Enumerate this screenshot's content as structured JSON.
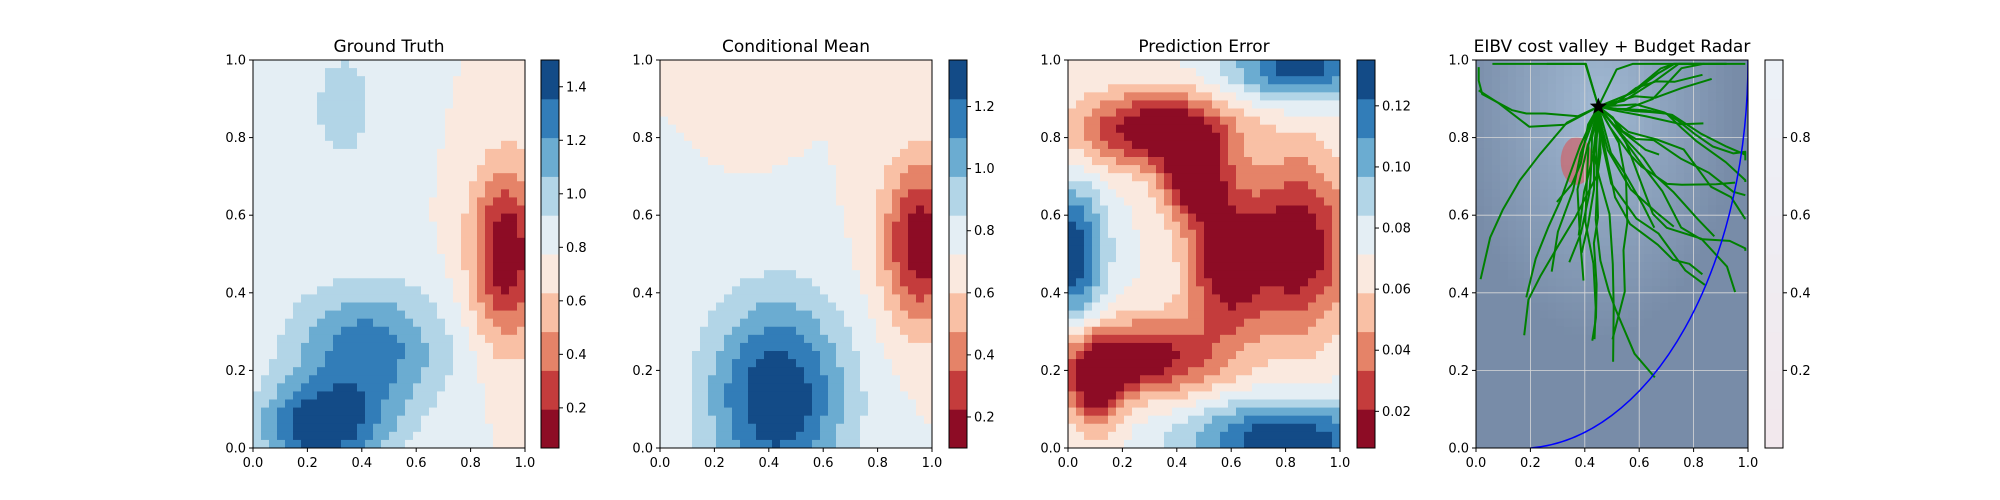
{
  "chart_data": [
    {
      "type": "heatmap",
      "title": "Ground Truth",
      "xlabel": "",
      "ylabel": "",
      "xlim": [
        0,
        1
      ],
      "ylim": [
        0,
        1
      ],
      "x_ticks": [
        "0.0",
        "0.2",
        "0.4",
        "0.6",
        "0.8",
        "1.0"
      ],
      "y_ticks": [
        "0.0",
        "0.2",
        "0.4",
        "0.6",
        "0.8",
        "1.0"
      ],
      "colormap": "RdBu",
      "colorbar": {
        "range": [
          0.05,
          1.5
        ],
        "ticks": [
          0.2,
          0.4,
          0.6,
          0.8,
          1.0,
          1.2,
          1.4
        ],
        "tick_labels": [
          "0.2",
          "0.4",
          "0.6",
          "0.8",
          "1.0",
          "1.2",
          "1.4"
        ]
      },
      "features": [
        {
          "value": 0.05,
          "x": 0.93,
          "y": 0.5,
          "sx": 0.09,
          "sy": 0.16
        },
        {
          "value": 0.95,
          "x": 0.33,
          "y": 0.88,
          "sx": 0.14,
          "sy": 0.18
        },
        {
          "value": 1.45,
          "x": 0.25,
          "y": 0.05,
          "sx": 0.16,
          "sy": 0.08
        },
        {
          "value": 1.3,
          "x": 0.42,
          "y": 0.25,
          "sx": 0.2,
          "sy": 0.12
        }
      ]
    },
    {
      "type": "heatmap",
      "title": "Conditional Mean",
      "xlabel": "",
      "ylabel": "",
      "xlim": [
        0,
        1
      ],
      "ylim": [
        0,
        1
      ],
      "x_ticks": [
        "0.0",
        "0.2",
        "0.4",
        "0.6",
        "0.8",
        "1.0"
      ],
      "y_ticks": [
        "0.0",
        "0.2",
        "0.4",
        "0.6",
        "0.8",
        "1.0"
      ],
      "colormap": "RdBu",
      "colorbar": {
        "range": [
          0.1,
          1.35
        ],
        "ticks": [
          0.2,
          0.4,
          0.6,
          0.8,
          1.0,
          1.2
        ],
        "tick_labels": [
          "0.2",
          "0.4",
          "0.6",
          "0.8",
          "1.0",
          "1.2"
        ]
      },
      "features": [
        {
          "value": 0.12,
          "x": 0.96,
          "y": 0.53,
          "sx": 0.1,
          "sy": 0.15
        },
        {
          "value": 0.72,
          "x": 0.36,
          "y": 0.84,
          "sx": 0.1,
          "sy": 0.14
        },
        {
          "value": 1.35,
          "x": 0.43,
          "y": 0.13,
          "sx": 0.18,
          "sy": 0.18
        }
      ]
    },
    {
      "type": "heatmap",
      "title": "Prediction Error",
      "xlabel": "",
      "ylabel": "",
      "xlim": [
        0,
        1
      ],
      "ylim": [
        0,
        1
      ],
      "x_ticks": [
        "0.0",
        "0.2",
        "0.4",
        "0.6",
        "0.8",
        "1.0"
      ],
      "y_ticks": [
        "0.0",
        "0.2",
        "0.4",
        "0.6",
        "0.8",
        "1.0"
      ],
      "colormap": "RdBu",
      "colorbar": {
        "range": [
          0.008,
          0.135
        ],
        "ticks": [
          0.02,
          0.04,
          0.06,
          0.08,
          0.1,
          0.12
        ],
        "tick_labels": [
          "0.02",
          "0.04",
          "0.06",
          "0.08",
          "0.10",
          "0.12"
        ]
      },
      "features": [
        {
          "value": 0.008,
          "x": 0.85,
          "y": 0.52,
          "sx": 0.13,
          "sy": 0.16
        },
        {
          "value": 0.008,
          "x": 0.32,
          "y": 0.82,
          "sx": 0.2,
          "sy": 0.07
        },
        {
          "value": 0.01,
          "x": 0.46,
          "y": 0.7,
          "sx": 0.08,
          "sy": 0.08
        },
        {
          "value": 0.01,
          "x": 0.58,
          "y": 0.48,
          "sx": 0.1,
          "sy": 0.14
        },
        {
          "value": 0.01,
          "x": 0.27,
          "y": 0.23,
          "sx": 0.19,
          "sy": 0.07
        },
        {
          "value": 0.015,
          "x": 0.1,
          "y": 0.16,
          "sx": 0.07,
          "sy": 0.08
        },
        {
          "value": 0.135,
          "x": 0.02,
          "y": 0.5,
          "sx": 0.08,
          "sy": 0.12
        },
        {
          "value": 0.135,
          "x": 0.8,
          "y": 0.02,
          "sx": 0.25,
          "sy": 0.07
        },
        {
          "value": 0.13,
          "x": 0.85,
          "y": 0.98,
          "sx": 0.18,
          "sy": 0.06
        }
      ]
    },
    {
      "type": "heatmap",
      "title": "EIBV cost valley + Budget Radar",
      "xlabel": "",
      "ylabel": "",
      "xlim": [
        0,
        1
      ],
      "ylim": [
        0,
        1
      ],
      "x_ticks": [
        "0.0",
        "0.2",
        "0.4",
        "0.6",
        "0.8",
        "1.0"
      ],
      "y_ticks": [
        "0.0",
        "0.2",
        "0.4",
        "0.6",
        "0.8",
        "1.0"
      ],
      "colormap": "RdBu",
      "grid": true,
      "colorbar": {
        "range": [
          0,
          1
        ],
        "ticks": [
          0.2,
          0.4,
          0.6,
          0.8
        ],
        "tick_labels": [
          "0.2",
          "0.4",
          "0.6",
          "0.8"
        ]
      },
      "start_point": {
        "x": 0.45,
        "y": 0.88
      },
      "budget_ellipse": {
        "x_start": 0.2,
        "y_start": 0.0,
        "x_end": 1.0,
        "y_end": 1.0
      },
      "n_candidate_paths": 40,
      "path_color": "#008000"
    }
  ]
}
